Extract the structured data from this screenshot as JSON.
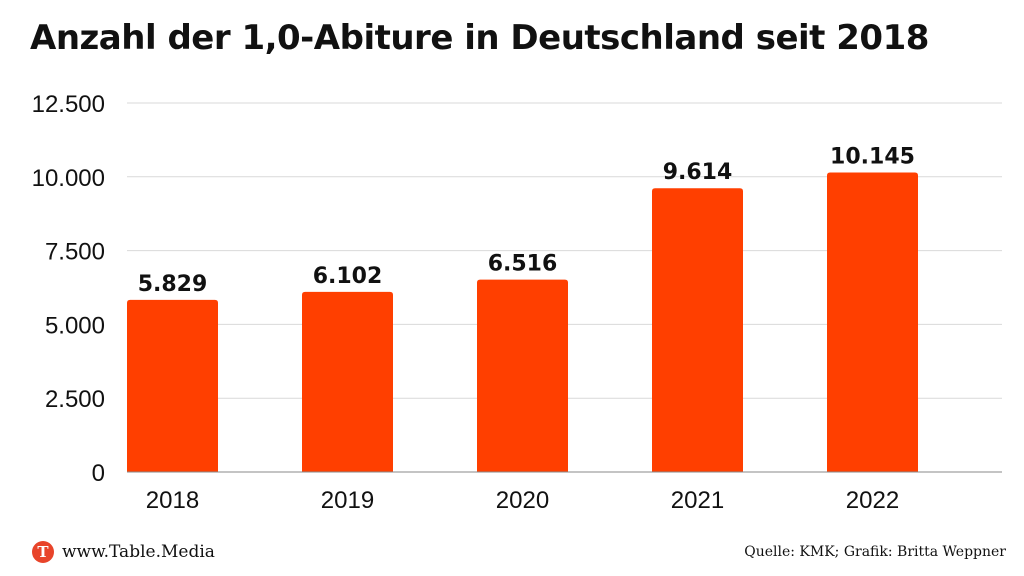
{
  "header": {
    "title": "Anzahl der 1,0-Abiture in Deutschland seit 2018"
  },
  "chart_data": {
    "type": "bar",
    "title": "Anzahl der 1,0-Abiture in Deutschland seit 2018",
    "xlabel": "",
    "ylabel": "",
    "categories": [
      "2018",
      "2019",
      "2020",
      "2021",
      "2022"
    ],
    "values": [
      5829,
      6102,
      6516,
      9614,
      10145
    ],
    "value_labels": [
      "5.829",
      "6.102",
      "6.516",
      "9.614",
      "10.145"
    ],
    "ylim": [
      0,
      12500
    ],
    "yticks": [
      0,
      2500,
      5000,
      7500,
      10000,
      12500
    ],
    "ytick_labels": [
      "0",
      "2.500",
      "5.000",
      "7.500",
      "10.000",
      "12.500"
    ],
    "grid": true,
    "legend": "none",
    "bar_color": "#ff3f00",
    "grid_color": "#d9d9d9"
  },
  "footer": {
    "logo_letter": "T",
    "logo_color": "#e8442a",
    "website": "www.Table.Media",
    "source": "Quelle: KMK; Grafik: Britta Weppner"
  }
}
